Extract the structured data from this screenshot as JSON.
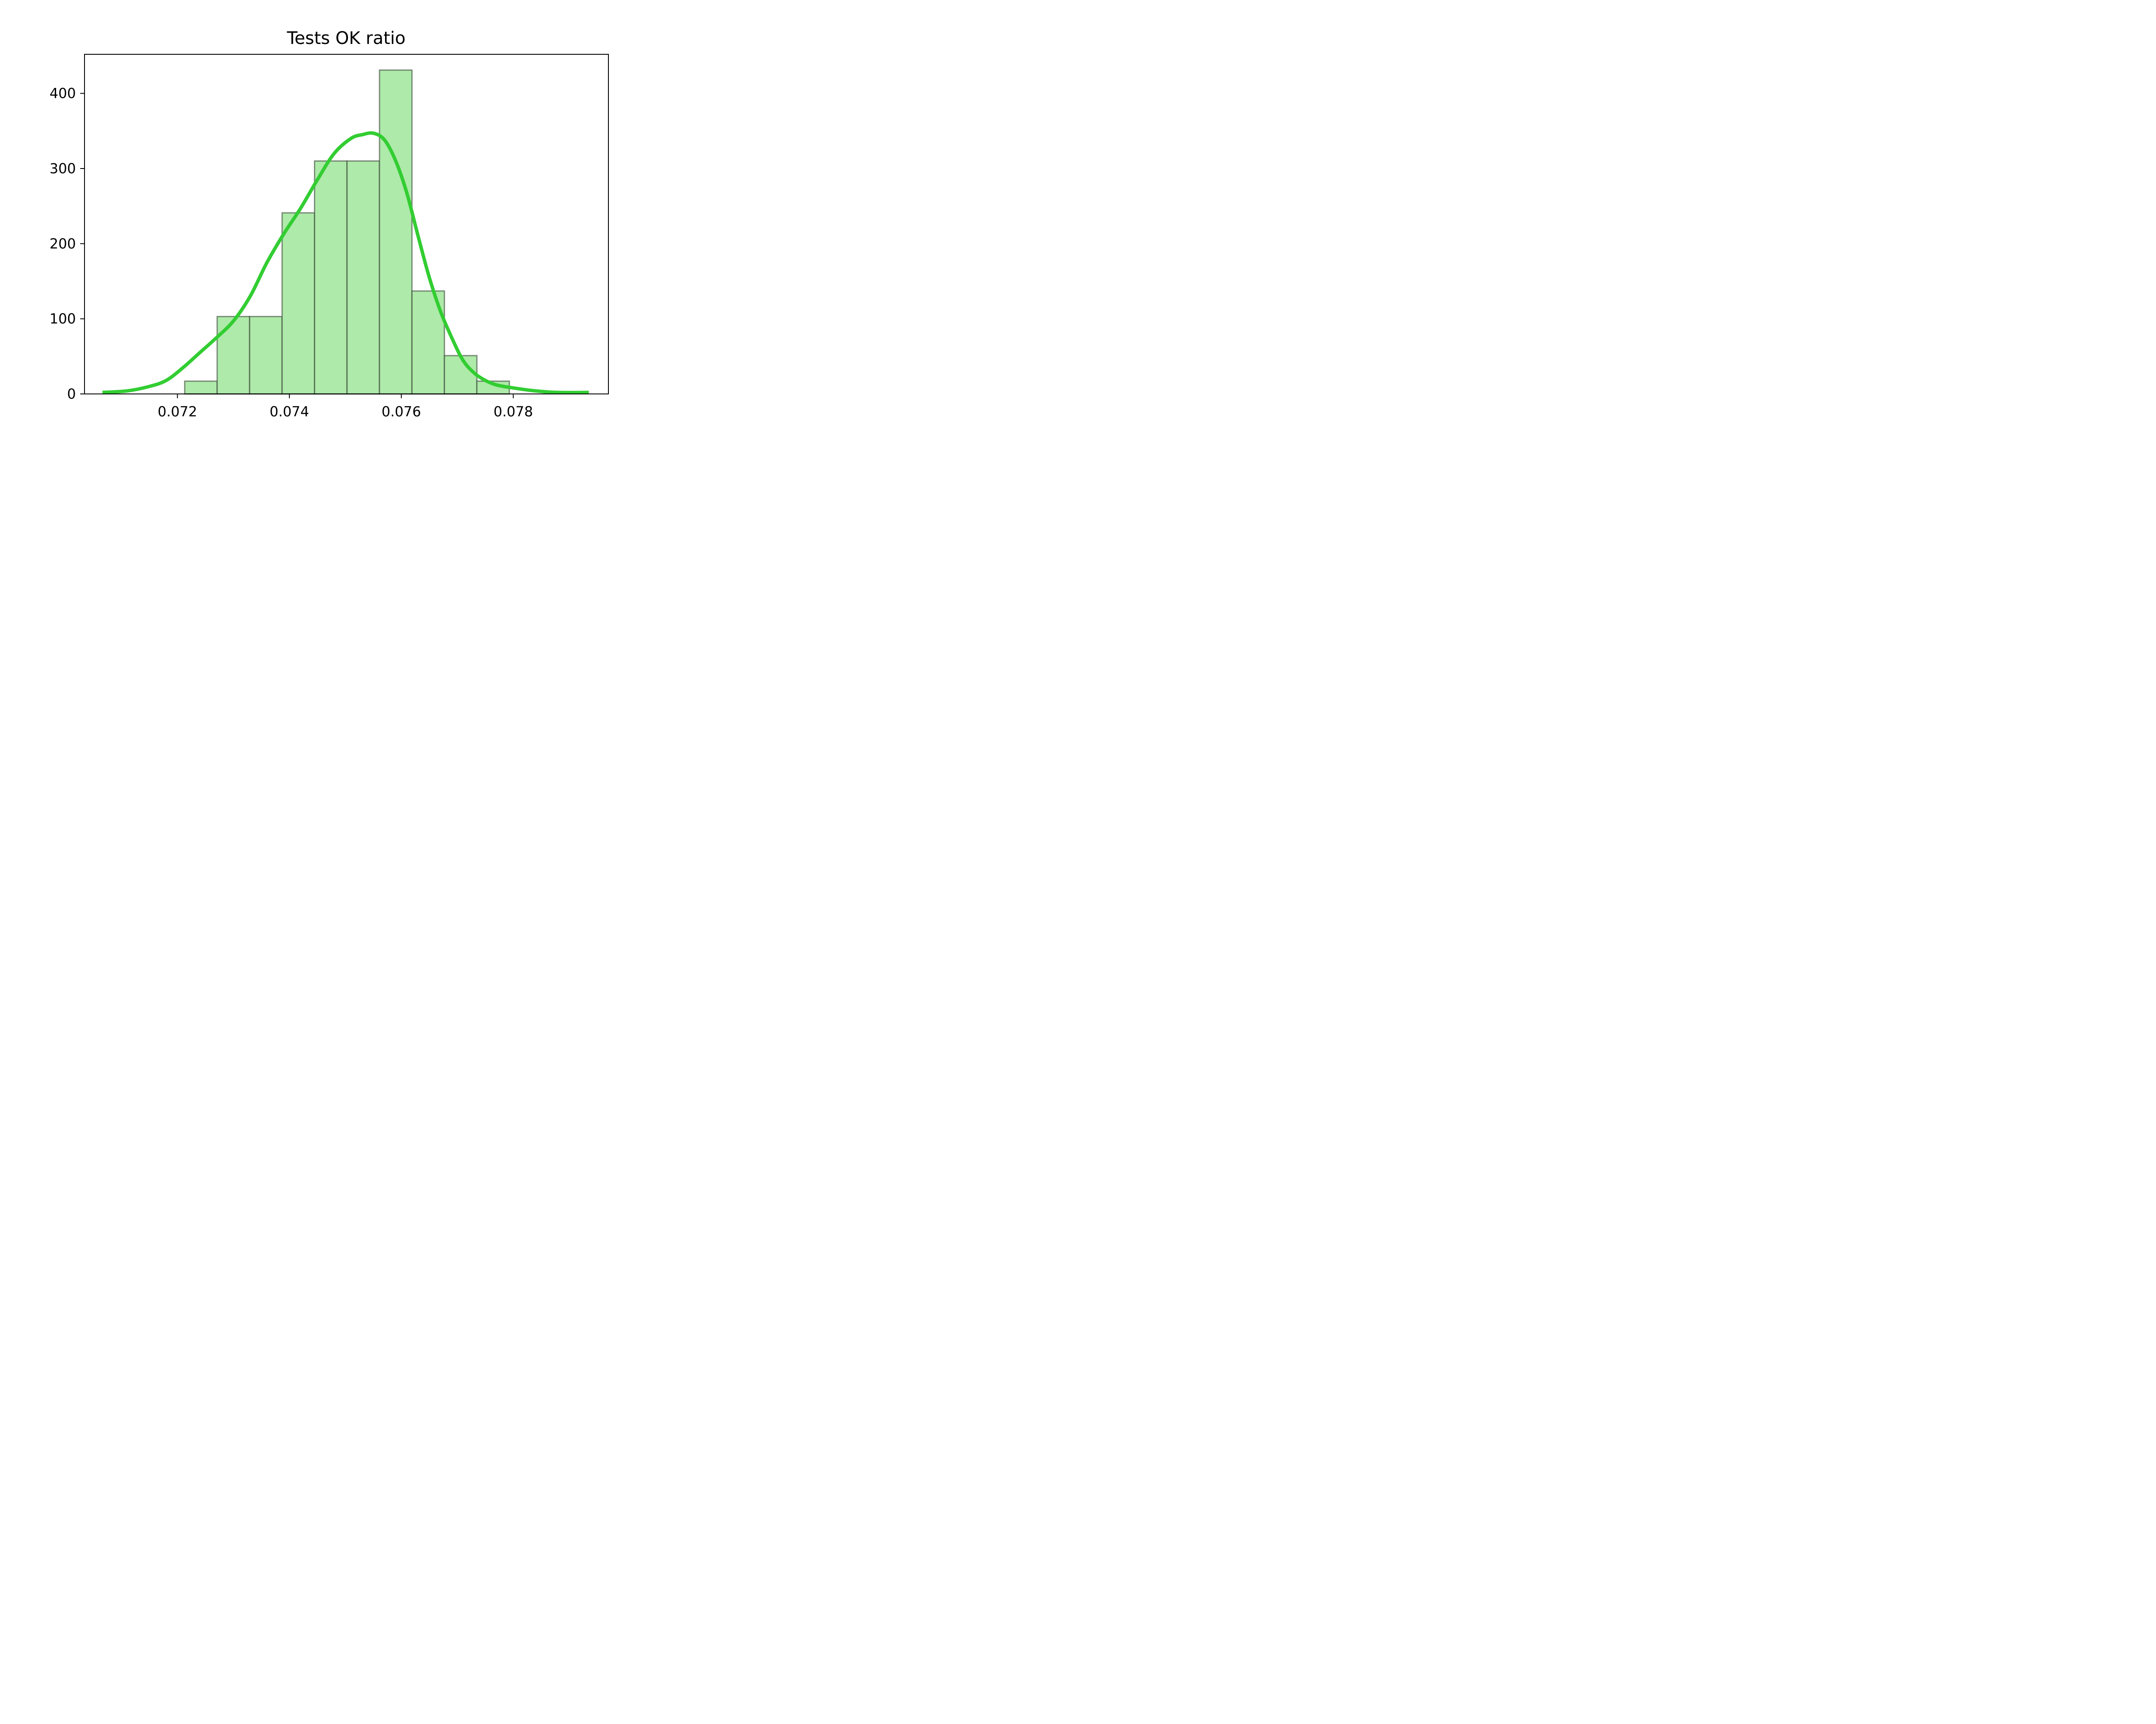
{
  "chart_data": {
    "type": "bar",
    "title": "Tests OK ratio",
    "xlabel": "",
    "ylabel": "",
    "xlim": [
      0.07034,
      0.0797
    ],
    "ylim": [
      0,
      452
    ],
    "x_ticks": [
      0.072,
      0.074,
      0.076,
      0.078
    ],
    "x_tick_labels": [
      "0.072",
      "0.074",
      "0.076",
      "0.078"
    ],
    "y_ticks": [
      0,
      100,
      200,
      300,
      400
    ],
    "y_tick_labels": [
      "0",
      "100",
      "200",
      "300",
      "400"
    ],
    "histogram": {
      "bin_edges": [
        0.07213,
        0.07271,
        0.07329,
        0.07387,
        0.07445,
        0.07503,
        0.07561,
        0.07619,
        0.07677,
        0.07735,
        0.07793
      ],
      "values": [
        17,
        103,
        103,
        241,
        310,
        310,
        431,
        137,
        51,
        17
      ],
      "fill_color": "#aeeaa9",
      "edge_color": "#3a4a3a"
    },
    "density_curve": {
      "color": "#32cd32",
      "x": [
        0.07066,
        0.0711,
        0.0715,
        0.0718,
        0.0721,
        0.0724,
        0.0727,
        0.073,
        0.0733,
        0.0736,
        0.0739,
        0.0742,
        0.0745,
        0.0748,
        0.0751,
        0.0753,
        0.0755,
        0.0757,
        0.0759,
        0.0761,
        0.0763,
        0.0765,
        0.0767,
        0.0769,
        0.0771,
        0.0773,
        0.0775,
        0.0777,
        0.078,
        0.0784,
        0.0788,
        0.07935
      ],
      "y": [
        2,
        4,
        10,
        18,
        35,
        55,
        75,
        97,
        130,
        175,
        213,
        247,
        285,
        320,
        340,
        345,
        347,
        338,
        310,
        267,
        210,
        155,
        110,
        75,
        45,
        28,
        18,
        12,
        8,
        4,
        2,
        2
      ]
    }
  }
}
